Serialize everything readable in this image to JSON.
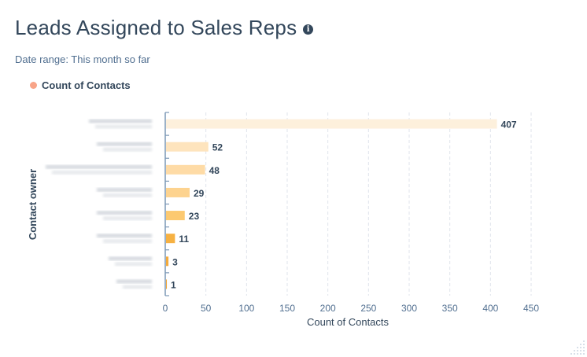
{
  "header": {
    "title": "Leads Assigned to Sales Reps",
    "info_icon": "info-circle-icon",
    "date_range": "Date range: This month so far"
  },
  "legend": {
    "items": [
      {
        "label": "Count of Contacts",
        "color": "#f8a488"
      }
    ]
  },
  "chart_data": {
    "type": "bar",
    "orientation": "horizontal",
    "title": "Leads Assigned to Sales Reps",
    "xlabel": "Count of Contacts",
    "ylabel": "Contact owner",
    "categories_note_hidden": true,
    "values": [
      407,
      52,
      48,
      29,
      23,
      11,
      3,
      1
    ],
    "colors": [
      "#fdf0dc",
      "#fee4bd",
      "#fedba6",
      "#fdd38f",
      "#fcc970",
      "#f6b142",
      "#f3aa3b",
      "#f2a535"
    ],
    "xlim": [
      0,
      450
    ],
    "xticks": [
      0,
      50,
      100,
      150,
      200,
      250,
      300,
      350,
      400,
      450
    ],
    "grid": true,
    "legend_position": "top-left"
  }
}
